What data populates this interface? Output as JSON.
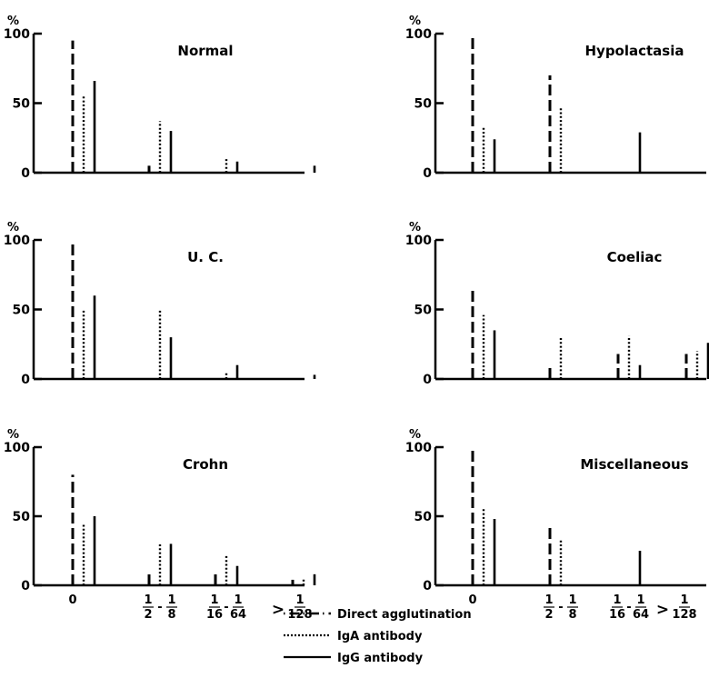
{
  "chart_data": [
    {
      "type": "bar",
      "title": "Normal",
      "unit": "%",
      "ylim": [
        0,
        100
      ],
      "yticks": [
        "100",
        "50",
        "0"
      ],
      "categories": [
        "0",
        "1/2 - 1/8",
        "1/16 - 1/64",
        ">1/128"
      ],
      "series": [
        {
          "name": "Direct agglutination",
          "style": "dashed",
          "values": [
            95,
            5,
            0,
            0
          ]
        },
        {
          "name": "IgA antibody",
          "style": "dotted",
          "values": [
            55,
            37,
            10,
            0
          ]
        },
        {
          "name": "IgG antibody",
          "style": "solid",
          "values": [
            66,
            30,
            8,
            5
          ]
        }
      ]
    },
    {
      "type": "bar",
      "title": "Hypolactasia",
      "unit": "%",
      "ylim": [
        0,
        100
      ],
      "yticks": [
        "100",
        "50",
        "0"
      ],
      "categories": [
        "0",
        "1/2 - 1/8",
        "1/16 - 1/64",
        ">1/128"
      ],
      "series": [
        {
          "name": "Direct agglutination",
          "style": "dashed",
          "values": [
            100,
            70,
            0,
            0
          ]
        },
        {
          "name": "IgA antibody",
          "style": "dotted",
          "values": [
            33,
            47,
            0,
            0
          ]
        },
        {
          "name": "IgG antibody",
          "style": "solid",
          "values": [
            24,
            0,
            29,
            0
          ]
        }
      ]
    },
    {
      "type": "bar",
      "title": "U. C.",
      "unit": "%",
      "ylim": [
        0,
        100
      ],
      "yticks": [
        "100",
        "50",
        "0"
      ],
      "categories": [
        "0",
        "1/2 - 1/8",
        "1/16 - 1/64",
        ">1/128"
      ],
      "series": [
        {
          "name": "Direct agglutination",
          "style": "dashed",
          "values": [
            100,
            0,
            0,
            0
          ]
        },
        {
          "name": "IgA antibody",
          "style": "dotted",
          "values": [
            50,
            50,
            5,
            0
          ]
        },
        {
          "name": "IgG antibody",
          "style": "solid",
          "values": [
            60,
            30,
            10,
            3
          ]
        }
      ]
    },
    {
      "type": "bar",
      "title": "Coeliac",
      "unit": "%",
      "ylim": [
        0,
        100
      ],
      "yticks": [
        "100",
        "50",
        "0"
      ],
      "categories": [
        "0",
        "1/2 - 1/8",
        "1/16 - 1/64",
        ">1/128"
      ],
      "series": [
        {
          "name": "Direct agglutination",
          "style": "dashed",
          "values": [
            66,
            10,
            18,
            18
          ]
        },
        {
          "name": "IgA antibody",
          "style": "dotted",
          "values": [
            46,
            30,
            31,
            20
          ]
        },
        {
          "name": "IgG antibody",
          "style": "solid",
          "values": [
            35,
            0,
            10,
            26
          ]
        }
      ]
    },
    {
      "type": "bar",
      "title": "Crohn",
      "unit": "%",
      "ylim": [
        0,
        100
      ],
      "yticks": [
        "100",
        "50",
        "0"
      ],
      "categories": [
        "0",
        "1/2 - 1/8",
        "1/16 - 1/64",
        ">1/128"
      ],
      "series": [
        {
          "name": "Direct agglutination",
          "style": "dashed",
          "values": [
            80,
            10,
            10,
            4
          ]
        },
        {
          "name": "IgA antibody",
          "style": "dotted",
          "values": [
            45,
            30,
            22,
            5
          ]
        },
        {
          "name": "IgG antibody",
          "style": "solid",
          "values": [
            50,
            30,
            14,
            8
          ]
        }
      ]
    },
    {
      "type": "bar",
      "title": "Miscellaneous",
      "unit": "%",
      "ylim": [
        0,
        100
      ],
      "yticks": [
        "100",
        "50",
        "0"
      ],
      "categories": [
        "0",
        "1/2 - 1/8",
        "1/16 - 1/64",
        ">1/128"
      ],
      "series": [
        {
          "name": "Direct agglutination",
          "style": "dashed",
          "values": [
            100,
            42,
            0,
            0
          ]
        },
        {
          "name": "IgA antibody",
          "style": "dotted",
          "values": [
            56,
            34,
            0,
            0
          ]
        },
        {
          "name": "IgG antibody",
          "style": "solid",
          "values": [
            48,
            0,
            25,
            0
          ]
        }
      ]
    }
  ],
  "x_tick_labels": {
    "zero": "0",
    "fractions": [
      {
        "num1": "1",
        "den1": "2",
        "sep": "-",
        "num2": "1",
        "den2": "8"
      },
      {
        "num1": "1",
        "den1": "16",
        "sep": "-",
        "num2": "1",
        "den2": "64"
      }
    ],
    "last": {
      "prefix": ">",
      "num": "1",
      "den": "128"
    }
  },
  "legend": [
    {
      "label": "Direct agglutination",
      "style": "dashed"
    },
    {
      "label": "IgA antibody",
      "style": "dotted"
    },
    {
      "label": "IgG antibody",
      "style": "solid"
    }
  ]
}
